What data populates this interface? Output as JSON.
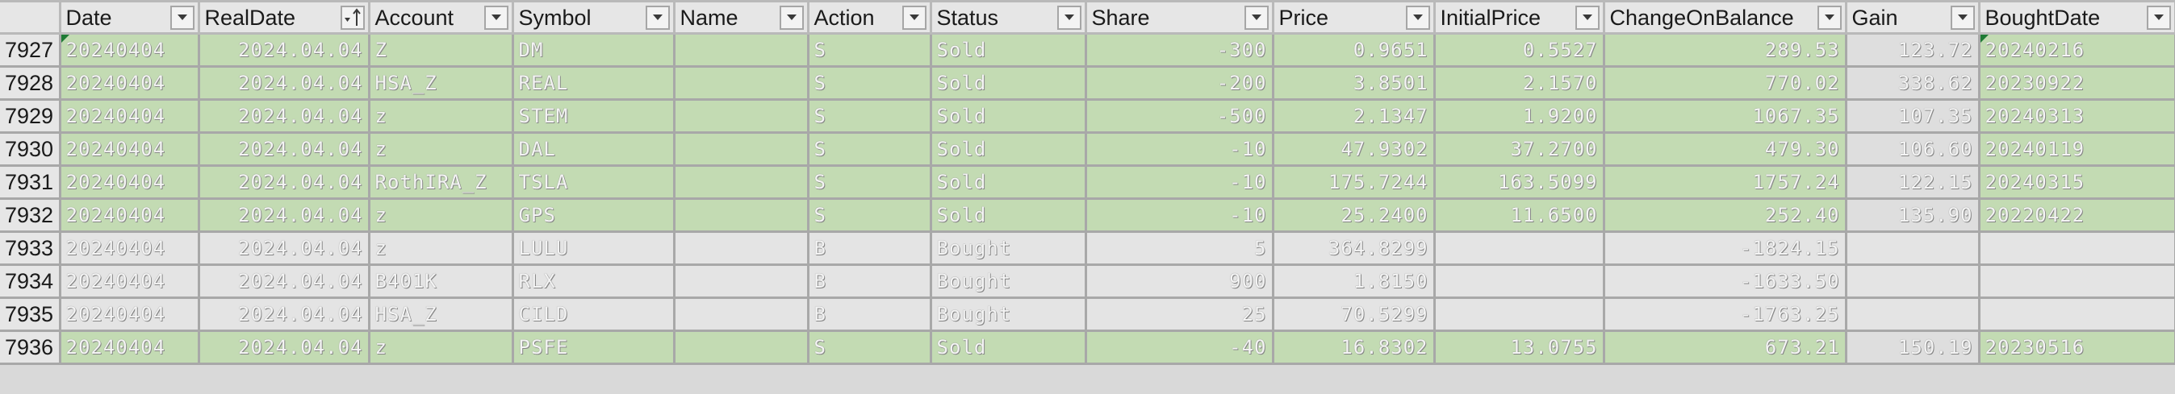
{
  "columns": {
    "date": "Date",
    "realdate": "RealDate",
    "account": "Account",
    "symbol": "Symbol",
    "name": "Name",
    "action": "Action",
    "status": "Status",
    "share": "Share",
    "price": "Price",
    "initial_price": "InitialPrice",
    "change_on_balance": "ChangeOnBalance",
    "gain": "Gain",
    "bought_date": "BoughtDate"
  },
  "rows": [
    {
      "num": "7927",
      "date": "20240404",
      "realdate": "2024.04.04",
      "account": "Z",
      "symbol": "DM",
      "name": "",
      "action": "S",
      "status": "Sold",
      "share": "-300",
      "price": "0.9651",
      "initial_price": "0.5527",
      "change_on_balance": "289.53",
      "gain": "123.72",
      "bought_date": "20240216",
      "type": "sold"
    },
    {
      "num": "7928",
      "date": "20240404",
      "realdate": "2024.04.04",
      "account": "HSA_Z",
      "symbol": "REAL",
      "name": "",
      "action": "S",
      "status": "Sold",
      "share": "-200",
      "price": "3.8501",
      "initial_price": "2.1570",
      "change_on_balance": "770.02",
      "gain": "338.62",
      "bought_date": "20230922",
      "type": "sold"
    },
    {
      "num": "7929",
      "date": "20240404",
      "realdate": "2024.04.04",
      "account": "z",
      "symbol": "STEM",
      "name": "",
      "action": "S",
      "status": "Sold",
      "share": "-500",
      "price": "2.1347",
      "initial_price": "1.9200",
      "change_on_balance": "1067.35",
      "gain": "107.35",
      "bought_date": "20240313",
      "type": "sold"
    },
    {
      "num": "7930",
      "date": "20240404",
      "realdate": "2024.04.04",
      "account": "z",
      "symbol": "DAL",
      "name": "",
      "action": "S",
      "status": "Sold",
      "share": "-10",
      "price": "47.9302",
      "initial_price": "37.2700",
      "change_on_balance": "479.30",
      "gain": "106.60",
      "bought_date": "20240119",
      "type": "sold"
    },
    {
      "num": "7931",
      "date": "20240404",
      "realdate": "2024.04.04",
      "account": "RothIRA_Z",
      "symbol": "TSLA",
      "name": "",
      "action": "S",
      "status": "Sold",
      "share": "-10",
      "price": "175.7244",
      "initial_price": "163.5099",
      "change_on_balance": "1757.24",
      "gain": "122.15",
      "bought_date": "20240315",
      "type": "sold"
    },
    {
      "num": "7932",
      "date": "20240404",
      "realdate": "2024.04.04",
      "account": "z",
      "symbol": "GPS",
      "name": "",
      "action": "S",
      "status": "Sold",
      "share": "-10",
      "price": "25.2400",
      "initial_price": "11.6500",
      "change_on_balance": "252.40",
      "gain": "135.90",
      "bought_date": "20220422",
      "type": "sold"
    },
    {
      "num": "7933",
      "date": "20240404",
      "realdate": "2024.04.04",
      "account": "z",
      "symbol": "LULU",
      "name": "",
      "action": "B",
      "status": "Bought",
      "share": "5",
      "price": "364.8299",
      "initial_price": "",
      "change_on_balance": "-1824.15",
      "gain": "",
      "bought_date": "",
      "type": "bought"
    },
    {
      "num": "7934",
      "date": "20240404",
      "realdate": "2024.04.04",
      "account": "B401K",
      "symbol": "RLX",
      "name": "",
      "action": "B",
      "status": "Bought",
      "share": "900",
      "price": "1.8150",
      "initial_price": "",
      "change_on_balance": "-1633.50",
      "gain": "",
      "bought_date": "",
      "type": "bought"
    },
    {
      "num": "7935",
      "date": "20240404",
      "realdate": "2024.04.04",
      "account": "HSA_Z",
      "symbol": "CILD",
      "name": "",
      "action": "B",
      "status": "Bought",
      "share": "25",
      "price": "70.5299",
      "initial_price": "",
      "change_on_balance": "-1763.25",
      "gain": "",
      "bought_date": "",
      "type": "bought"
    },
    {
      "num": "7936",
      "date": "20240404",
      "realdate": "2024.04.04",
      "account": "z",
      "symbol": "PSFE",
      "name": "",
      "action": "S",
      "status": "Sold",
      "share": "-40",
      "price": "16.8302",
      "initial_price": "13.0755",
      "change_on_balance": "673.21",
      "gain": "150.19",
      "bought_date": "20230516",
      "type": "sold"
    }
  ],
  "colors": {
    "sold_row": "#c3dbb3",
    "bought_row": "#e4e4e4",
    "header_bg": "#e6e6e6",
    "grid": "#a8a8a8",
    "error_mark": "#1e7b34"
  }
}
